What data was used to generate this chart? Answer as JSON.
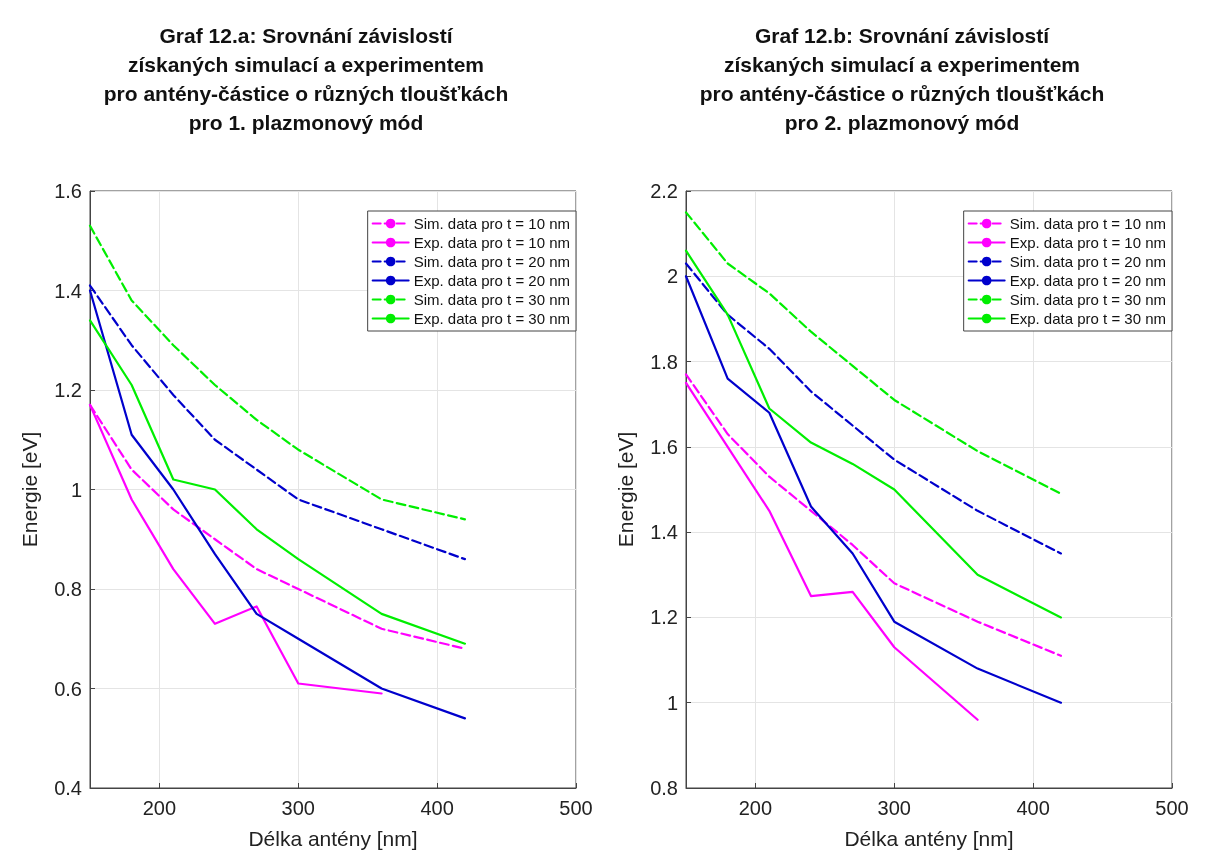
{
  "chart_data": [
    {
      "type": "line",
      "title": "Graf 12.a: Srovnání závislostí\nzískaných simulací a experimentem\npro antény-částice o různých tloušťkách\npro 1. plazmonový mód",
      "xlabel": "Délka antény [nm]",
      "ylabel": "Energie [eV]",
      "x": [
        150,
        180,
        210,
        240,
        270,
        300,
        360,
        420
      ],
      "xlim": [
        150,
        500
      ],
      "xticks": [
        200,
        300,
        400,
        500
      ],
      "ylim": [
        0.4,
        1.6
      ],
      "yticks": [
        0.4,
        0.6,
        0.8,
        1,
        1.2,
        1.4,
        1.6
      ],
      "grid": true,
      "legend": "top right",
      "series": [
        {
          "name": "Sim. data pro t = 10 nm",
          "color": "#ff00ff",
          "line_style": "dashed",
          "values": [
            1.17,
            1.04,
            0.96,
            0.9,
            0.84,
            0.8,
            0.72,
            0.68
          ]
        },
        {
          "name": "Exp. data pro t = 10 nm",
          "color": "#ff00ff",
          "line_style": "solid",
          "values": [
            1.17,
            0.98,
            0.84,
            0.73,
            0.765,
            0.61,
            0.59,
            null
          ]
        },
        {
          "name": "Sim. data pro t = 20 nm",
          "color": "#0000cc",
          "line_style": "dashed",
          "values": [
            1.41,
            1.29,
            1.19,
            1.1,
            1.04,
            0.98,
            0.92,
            0.86
          ]
        },
        {
          "name": "Exp. data pro t = 20 nm",
          "color": "#0000cc",
          "line_style": "solid",
          "values": [
            1.4,
            1.11,
            1.0,
            0.87,
            0.75,
            0.7,
            0.6,
            0.54
          ]
        },
        {
          "name": "Sim. data pro t = 30 nm",
          "color": "#00ee00",
          "line_style": "dashed",
          "values": [
            1.53,
            1.38,
            1.29,
            1.21,
            1.14,
            1.08,
            0.98,
            0.94
          ]
        },
        {
          "name": "Exp. data pro t = 30 nm",
          "color": "#00ee00",
          "line_style": "solid",
          "values": [
            1.34,
            1.21,
            1.02,
            1.0,
            0.92,
            0.86,
            0.75,
            0.69
          ]
        }
      ]
    },
    {
      "type": "line",
      "title": "Graf 12.b: Srovnání závislostí\nzískaných simulací a experimentem\npro antény-částice o různých tloušťkách\npro 2. plazmonový mód",
      "xlabel": "Délka antény [nm]",
      "ylabel": "Energie [eV]",
      "x": [
        150,
        180,
        210,
        240,
        270,
        300,
        360,
        420
      ],
      "xlim": [
        150,
        500
      ],
      "xticks": [
        200,
        300,
        400,
        500
      ],
      "ylim": [
        0.8,
        2.2
      ],
      "yticks": [
        0.8,
        1,
        1.2,
        1.4,
        1.6,
        1.8,
        2,
        2.2
      ],
      "grid": true,
      "legend": "top right",
      "series": [
        {
          "name": "Sim. data pro t = 10 nm",
          "color": "#ff00ff",
          "line_style": "dashed",
          "values": [
            1.77,
            1.63,
            1.53,
            1.45,
            1.37,
            1.28,
            1.19,
            1.11
          ]
        },
        {
          "name": "Exp. data pro t = 10 nm",
          "color": "#ff00ff",
          "line_style": "solid",
          "values": [
            1.75,
            1.6,
            1.45,
            1.25,
            1.26,
            1.13,
            0.96,
            null
          ]
        },
        {
          "name": "Sim. data pro t = 20 nm",
          "color": "#0000cc",
          "line_style": "dashed",
          "values": [
            2.03,
            1.91,
            1.83,
            1.73,
            1.65,
            1.57,
            1.45,
            1.35
          ]
        },
        {
          "name": "Exp. data pro t = 20 nm",
          "color": "#0000cc",
          "line_style": "solid",
          "values": [
            2.0,
            1.76,
            1.68,
            1.46,
            1.35,
            1.19,
            1.08,
            1.0
          ]
        },
        {
          "name": "Sim. data pro t = 30 nm",
          "color": "#00ee00",
          "line_style": "dashed",
          "values": [
            2.15,
            2.03,
            1.96,
            1.87,
            1.79,
            1.71,
            1.59,
            1.49
          ]
        },
        {
          "name": "Exp. data pro t = 30 nm",
          "color": "#00ee00",
          "line_style": "solid",
          "values": [
            2.06,
            1.91,
            1.69,
            1.61,
            1.56,
            1.5,
            1.3,
            1.2
          ]
        }
      ]
    }
  ]
}
